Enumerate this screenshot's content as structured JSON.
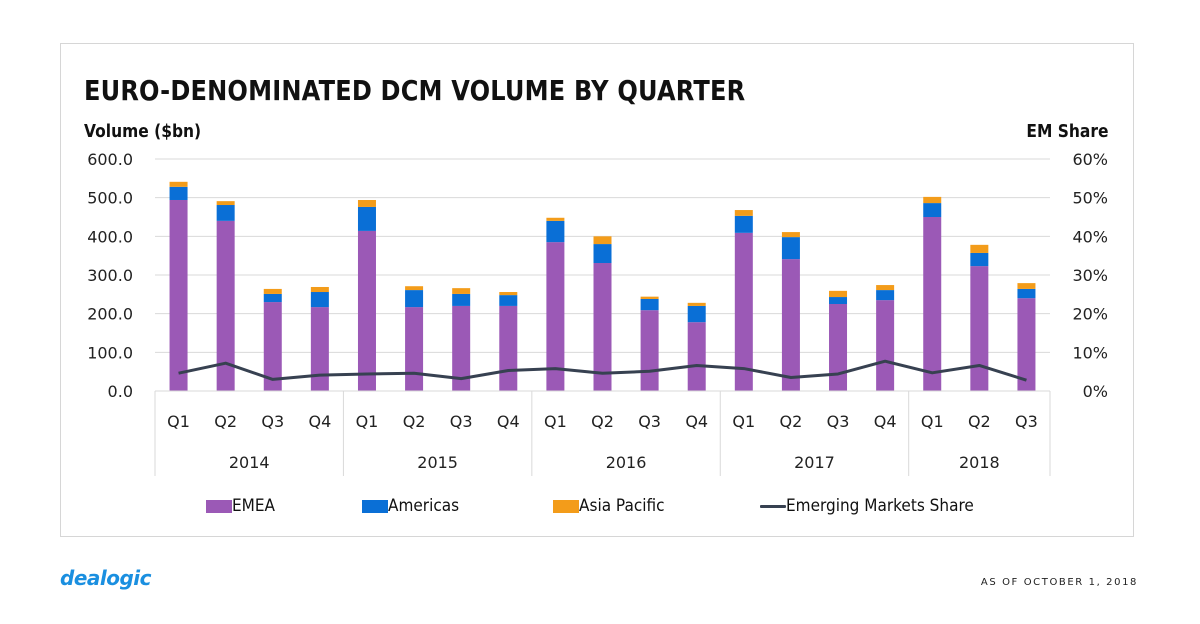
{
  "chart_data": {
    "type": "bar",
    "stacked": true,
    "title": "EURO-DENOMINATED DCM VOLUME BY QUARTER",
    "ylabel": "Volume ($bn)",
    "y2label": "EM Share",
    "ylim": [
      0,
      600
    ],
    "y2lim": [
      0,
      60
    ],
    "yticks": [
      "0.0",
      "100.0",
      "200.0",
      "300.0",
      "400.0",
      "500.0",
      "600.0"
    ],
    "y2ticks": [
      "0%",
      "10%",
      "20%",
      "30%",
      "40%",
      "50%",
      "60%"
    ],
    "grid": true,
    "legend_position": "bottom",
    "categories": [
      "Q1",
      "Q2",
      "Q3",
      "Q4",
      "Q1",
      "Q2",
      "Q3",
      "Q4",
      "Q1",
      "Q2",
      "Q3",
      "Q4",
      "Q1",
      "Q2",
      "Q3",
      "Q4",
      "Q1",
      "Q2",
      "Q3"
    ],
    "groups": [
      {
        "label": "2014",
        "count": 4
      },
      {
        "label": "2015",
        "count": 4
      },
      {
        "label": "2016",
        "count": 4
      },
      {
        "label": "2017",
        "count": 4
      },
      {
        "label": "2018",
        "count": 3
      }
    ],
    "series": [
      {
        "name": "EMEA",
        "type": "bar",
        "axis": "left",
        "color": "#9b59b6",
        "values": [
          494,
          440,
          230,
          217,
          414,
          217,
          220,
          220,
          385,
          331,
          209,
          178,
          409,
          341,
          225,
          235,
          450,
          323,
          240
        ]
      },
      {
        "name": "Americas",
        "type": "bar",
        "axis": "left",
        "color": "#0a6fd6",
        "values": [
          34,
          41,
          21,
          39,
          62,
          44,
          31,
          28,
          55,
          49,
          29,
          42,
          44,
          57,
          18,
          26,
          36,
          34,
          24
        ]
      },
      {
        "name": "Asia Pacific",
        "type": "bar",
        "axis": "left",
        "color": "#f39c1a",
        "values": [
          13,
          10,
          13,
          13,
          18,
          10,
          15,
          8,
          8,
          20,
          6,
          8,
          15,
          13,
          16,
          13,
          16,
          21,
          15
        ]
      },
      {
        "name": "Emerging Markets Share",
        "type": "line",
        "axis": "right",
        "color": "#374151",
        "values": [
          4.6,
          7.2,
          3.0,
          4.1,
          4.4,
          4.6,
          3.2,
          5.3,
          5.8,
          4.6,
          5.1,
          6.6,
          5.8,
          3.5,
          4.4,
          7.7,
          4.7,
          6.6,
          2.8
        ]
      }
    ]
  },
  "footer": {
    "logo": "dealogic",
    "as_of": "AS OF OCTOBER 1, 2018"
  }
}
